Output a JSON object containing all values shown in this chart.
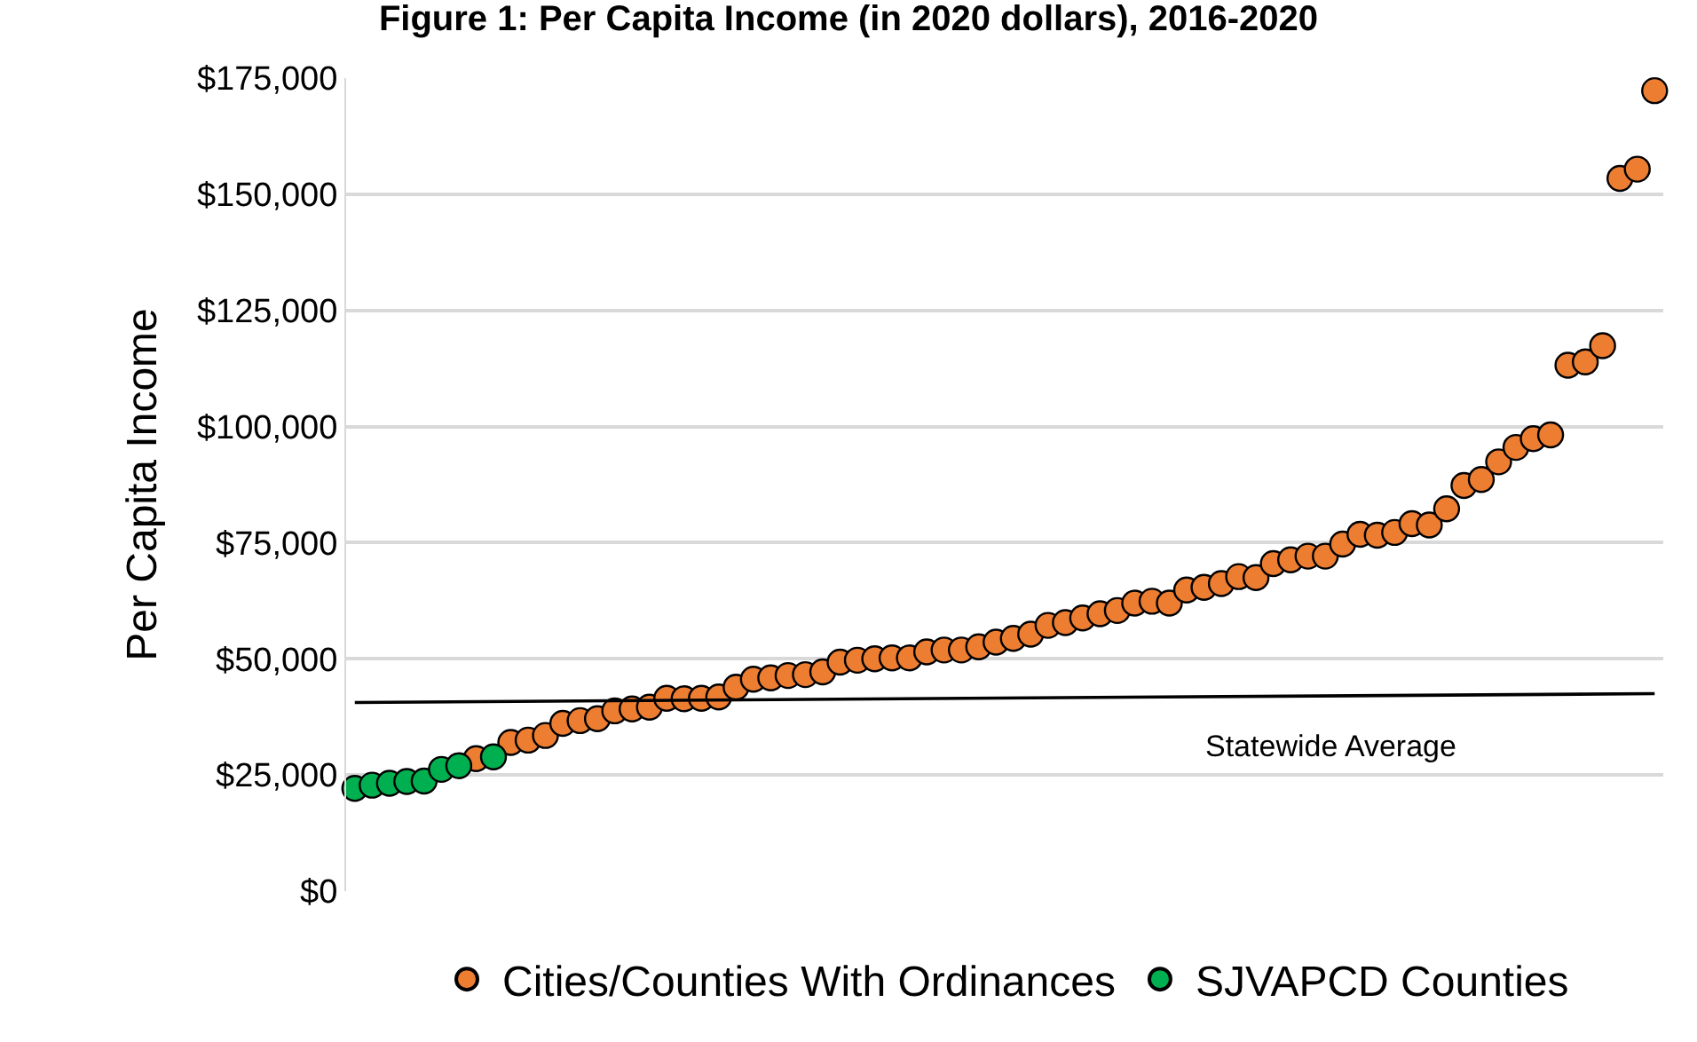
{
  "chart_data": {
    "type": "scatter",
    "title": "Figure 1: Per Capita Income (in 2020 dollars), 2016-2020",
    "ylabel": "Per Capita Income",
    "categories": [
      null,
      null,
      null,
      null,
      null,
      null,
      null,
      null,
      null,
      null,
      null,
      null,
      null,
      null,
      null,
      null,
      null,
      null,
      null,
      null,
      null,
      null,
      null,
      null,
      null,
      null,
      null,
      null,
      null,
      null,
      null,
      null,
      null,
      null,
      null,
      null,
      null,
      null,
      null,
      null,
      null,
      null,
      null,
      null,
      null,
      null,
      null,
      null,
      null,
      null,
      null,
      null,
      null,
      null,
      null,
      null,
      null,
      null,
      null,
      null,
      null,
      null,
      null,
      null,
      null,
      null,
      null,
      null,
      null,
      null,
      null,
      null,
      null,
      null,
      null,
      null
    ],
    "series": [
      {
        "name": "Cities/Counties With Ordinances",
        "color": "#ed7d31",
        "values": [
          null,
          null,
          null,
          null,
          null,
          null,
          null,
          28500,
          null,
          32000,
          32500,
          33500,
          36100,
          36700,
          37100,
          38800,
          39200,
          39600,
          41500,
          41400,
          41500,
          41800,
          43900,
          45600,
          45900,
          46400,
          46600,
          47200,
          49300,
          49700,
          50000,
          50200,
          50200,
          51500,
          51900,
          51900,
          52600,
          53600,
          54400,
          55300,
          57200,
          57800,
          58800,
          59700,
          60400,
          62000,
          62400,
          62000,
          64800,
          65400,
          66200,
          67700,
          67500,
          70500,
          71300,
          72100,
          72100,
          74700,
          76800,
          76600,
          77200,
          79100,
          78800,
          82300,
          87300,
          88600,
          92400,
          95500,
          97400,
          98200,
          113200,
          113900,
          117400,
          153400,
          155400,
          172300
        ]
      },
      {
        "name": "SJVAPCD Counties",
        "color": "#00b050",
        "values": [
          22100,
          22800,
          23200,
          23600,
          23700,
          26200,
          27000,
          null,
          28900,
          null,
          null,
          null,
          null,
          null,
          null,
          null,
          null,
          null,
          null,
          null,
          null,
          null,
          null,
          null,
          null,
          null,
          null,
          null,
          null,
          null,
          null,
          null,
          null,
          null,
          null,
          null,
          null,
          null,
          null,
          null,
          null,
          null,
          null,
          null,
          null,
          null,
          null,
          null,
          null,
          null,
          null,
          null,
          null,
          null,
          null,
          null,
          null,
          null,
          null,
          null,
          null,
          null,
          null,
          null,
          null,
          null,
          null,
          null,
          null,
          null,
          null,
          null,
          null,
          null,
          null,
          null
        ]
      },
      {
        "name": "Statewide Average",
        "type": "line",
        "color": "#000000",
        "marker": "none",
        "values": [
          40600,
          null,
          null,
          null,
          null,
          null,
          null,
          null,
          null,
          null,
          null,
          null,
          null,
          null,
          null,
          null,
          null,
          null,
          null,
          null,
          null,
          null,
          null,
          null,
          null,
          null,
          null,
          null,
          null,
          null,
          null,
          null,
          null,
          null,
          null,
          null,
          null,
          null,
          null,
          null,
          null,
          null,
          null,
          null,
          null,
          null,
          null,
          null,
          null,
          null,
          null,
          null,
          null,
          null,
          null,
          null,
          null,
          null,
          null,
          null,
          null,
          null,
          null,
          null,
          null,
          null,
          null,
          null,
          null,
          null,
          null,
          null,
          null,
          null,
          null,
          42500
        ]
      }
    ],
    "ylim": [
      0,
      175000
    ],
    "yticks": [
      {
        "value": 0,
        "label": "$0"
      },
      {
        "value": 25000,
        "label": "$25,000"
      },
      {
        "value": 50000,
        "label": "$50,000"
      },
      {
        "value": 75000,
        "label": "$75,000"
      },
      {
        "value": 100000,
        "label": "$100,000"
      },
      {
        "value": 125000,
        "label": "$125,000"
      },
      {
        "value": 150000,
        "label": "$150,000"
      },
      {
        "value": 175000,
        "label": "$175,000"
      }
    ],
    "grid": "y",
    "legend": "bottom",
    "marker": "circle",
    "tick_labels": "y"
  }
}
